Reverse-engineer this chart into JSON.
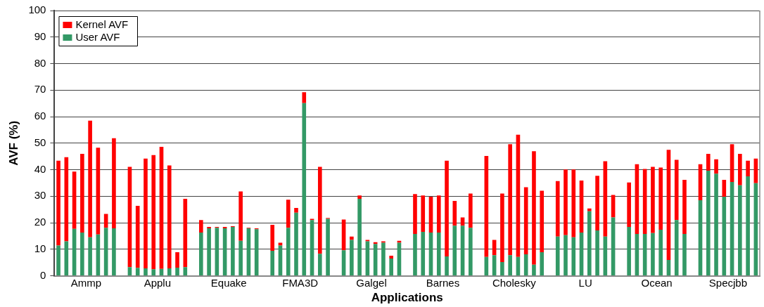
{
  "chart_data": {
    "type": "bar",
    "stacked": true,
    "xlabel": "Applications",
    "ylabel": "AVF (%)",
    "categories": [
      null,
      null,
      null,
      "Ammp",
      null,
      null,
      null,
      null,
      null,
      null,
      null,
      null,
      "Applu",
      null,
      null,
      null,
      null,
      null,
      null,
      null,
      null,
      "Equake",
      null,
      null,
      null,
      null,
      null,
      null,
      null,
      null,
      "FMA3D",
      null,
      null,
      null,
      null,
      null,
      null,
      null,
      null,
      "Galgel",
      null,
      null,
      null,
      null,
      null,
      null,
      null,
      null,
      "Barnes",
      null,
      null,
      null,
      null,
      null,
      null,
      null,
      null,
      "Cholesky",
      null,
      null,
      null,
      null,
      null,
      null,
      null,
      null,
      "LU",
      null,
      null,
      null,
      null,
      null,
      null,
      null,
      null,
      "Ocean",
      null,
      null,
      null,
      null,
      null,
      null,
      null,
      null,
      "Specjbb",
      null,
      null,
      null,
      null
    ],
    "series": [
      {
        "name": "User AVF",
        "color": "#339966",
        "values": [
          11.4,
          13.0,
          17.7,
          16.3,
          14.5,
          15.6,
          18.1,
          17.9,
          null,
          3.3,
          3.0,
          2.8,
          2.5,
          2.6,
          2.8,
          3.1,
          3.3,
          null,
          16.3,
          17.9,
          18.1,
          17.9,
          18.4,
          13.2,
          17.9,
          17.6,
          null,
          9.4,
          11.4,
          18.1,
          23.8,
          65.1,
          21.0,
          8.3,
          21.5,
          null,
          9.6,
          13.5,
          29.0,
          13.0,
          12.0,
          12.5,
          6.5,
          12.5,
          null,
          15.8,
          16.6,
          16.3,
          16.3,
          7.3,
          18.9,
          18.9,
          18.1,
          null,
          7.1,
          7.8,
          5.2,
          7.8,
          7.1,
          8.1,
          4.2,
          8.9,
          null,
          14.8,
          15.3,
          14.5,
          16.3,
          24.3,
          17.1,
          14.8,
          22.0,
          null,
          18.4,
          15.8,
          15.8,
          16.1,
          17.4,
          6.0,
          21.0,
          15.8,
          null,
          28.5,
          39.6,
          38.5,
          29.8,
          35.4,
          34.1,
          37.5,
          34.9
        ]
      },
      {
        "name": "Kernel AVF",
        "color": "#ff0000",
        "values": [
          32.0,
          31.7,
          21.6,
          29.7,
          44.0,
          32.7,
          5.2,
          34.0,
          null,
          37.8,
          23.4,
          41.4,
          43.0,
          46.0,
          38.8,
          5.8,
          25.7,
          null,
          4.7,
          0.5,
          0.3,
          0.5,
          0.3,
          18.6,
          0.2,
          0.3,
          null,
          9.8,
          1.1,
          10.6,
          1.8,
          4.1,
          0.5,
          32.8,
          0.3,
          null,
          11.6,
          1.3,
          1.3,
          0.5,
          0.7,
          0.5,
          1.1,
          0.7,
          null,
          15.0,
          13.7,
          13.5,
          14.0,
          36.1,
          9.3,
          3.1,
          12.9,
          null,
          38.1,
          5.7,
          25.8,
          41.8,
          46.1,
          25.3,
          42.8,
          23.2,
          null,
          20.9,
          24.8,
          25.6,
          19.6,
          1.1,
          20.6,
          28.4,
          8.5,
          null,
          16.8,
          26.3,
          24.5,
          25.0,
          23.4,
          41.5,
          22.7,
          20.4,
          null,
          13.6,
          6.4,
          5.4,
          6.4,
          14.2,
          11.9,
          5.9,
          9.3
        ]
      }
    ],
    "ylim": [
      0,
      100
    ],
    "yticks": [
      0,
      10,
      20,
      30,
      40,
      50,
      60,
      70,
      80,
      90,
      100
    ],
    "grid": "y",
    "legend": "top left"
  }
}
